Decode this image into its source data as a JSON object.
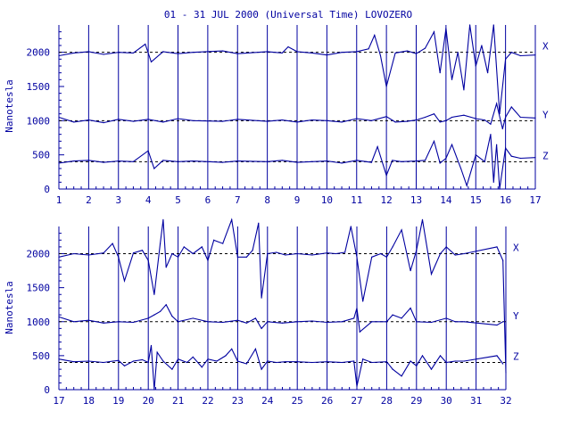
{
  "title": "01 - 31 JUL 2000 (Universal Time) LOVOZERO",
  "colors": {
    "ink": "#0000a0",
    "background": "#ffffff"
  },
  "chart_data": [
    {
      "type": "line",
      "panel": "top",
      "ylabel": "Nanotesla",
      "xlim": [
        1,
        17
      ],
      "ylim": [
        0,
        2400
      ],
      "yticks": [
        0,
        500,
        1000,
        1500,
        2000
      ],
      "xticks": [
        1,
        2,
        3,
        4,
        5,
        6,
        7,
        8,
        9,
        10,
        11,
        12,
        13,
        14,
        15,
        16,
        17
      ],
      "grid": "vertical at each day",
      "baselines": [
        {
          "component": "X",
          "level": 2000
        },
        {
          "component": "Y",
          "level": 1000
        },
        {
          "component": "Z",
          "level": 400
        }
      ],
      "series": [
        {
          "name": "X",
          "x": [
            1,
            1.5,
            2,
            2.5,
            3,
            3.5,
            3.9,
            4.1,
            4.5,
            5,
            5.5,
            6.5,
            7,
            8,
            8.5,
            8.7,
            9,
            9.5,
            10,
            10.5,
            11,
            11.4,
            11.6,
            11.8,
            12,
            12.3,
            12.7,
            13,
            13.3,
            13.6,
            13.8,
            14,
            14.2,
            14.4,
            14.6,
            14.8,
            15,
            15.2,
            15.4,
            15.6,
            15.8,
            16,
            16.2,
            16.5,
            17
          ],
          "values": [
            1950,
            1990,
            2010,
            1970,
            2000,
            1990,
            2120,
            1860,
            2010,
            1980,
            2000,
            2020,
            1980,
            2010,
            1990,
            2080,
            2010,
            1990,
            1960,
            2000,
            2010,
            2050,
            2250,
            1950,
            1500,
            1990,
            2020,
            1980,
            2060,
            2300,
            1700,
            2350,
            1600,
            2000,
            1450,
            2400,
            1800,
            2100,
            1700,
            2400,
            1100,
            1900,
            2000,
            1950,
            1960
          ]
        },
        {
          "name": "Y",
          "x": [
            1,
            1.5,
            2,
            2.5,
            3,
            3.5,
            4,
            4.5,
            5,
            5.5,
            6.5,
            7,
            8,
            8.5,
            9,
            9.5,
            10,
            10.5,
            11,
            11.5,
            12,
            12.3,
            12.7,
            13,
            13.3,
            13.6,
            13.8,
            14,
            14.2,
            14.6,
            15,
            15.3,
            15.5,
            15.7,
            15.9,
            16,
            16.2,
            16.5,
            17
          ],
          "values": [
            1050,
            980,
            1010,
            970,
            1020,
            990,
            1020,
            980,
            1030,
            1000,
            990,
            1020,
            990,
            1010,
            980,
            1010,
            1000,
            980,
            1030,
            1000,
            1060,
            980,
            990,
            1010,
            1050,
            1100,
            980,
            1000,
            1050,
            1080,
            1030,
            1010,
            950,
            1250,
            880,
            1050,
            1200,
            1050,
            1040
          ]
        },
        {
          "name": "Z",
          "x": [
            1,
            1.5,
            2,
            2.5,
            3,
            3.5,
            4,
            4.2,
            4.5,
            5,
            5.5,
            6.5,
            7,
            8,
            8.5,
            9,
            9.5,
            10,
            10.5,
            11,
            11.5,
            11.7,
            12,
            12.2,
            12.5,
            13,
            13.3,
            13.6,
            13.8,
            14,
            14.2,
            14.5,
            14.7,
            15,
            15.3,
            15.5,
            15.6,
            15.7,
            15.8,
            16,
            16.2,
            16.5,
            17
          ],
          "values": [
            380,
            410,
            420,
            390,
            410,
            400,
            560,
            300,
            420,
            400,
            410,
            390,
            410,
            400,
            420,
            390,
            400,
            410,
            380,
            420,
            390,
            620,
            200,
            420,
            400,
            410,
            420,
            700,
            380,
            450,
            650,
            300,
            50,
            500,
            400,
            800,
            100,
            650,
            0,
            600,
            480,
            450,
            460
          ]
        }
      ]
    },
    {
      "type": "line",
      "panel": "bottom",
      "ylabel": "Nanotesla",
      "xlim": [
        17,
        32
      ],
      "ylim": [
        0,
        2400
      ],
      "yticks": [
        0,
        500,
        1000,
        1500,
        2000
      ],
      "xticks": [
        17,
        18,
        19,
        20,
        21,
        22,
        23,
        24,
        25,
        26,
        27,
        28,
        29,
        30,
        31,
        32
      ],
      "grid": "vertical at each day",
      "baselines": [
        {
          "component": "X",
          "level": 2000
        },
        {
          "component": "Y",
          "level": 1000
        },
        {
          "component": "Z",
          "level": 400
        }
      ],
      "series": [
        {
          "name": "X",
          "x": [
            17,
            17.5,
            18,
            18.5,
            18.8,
            19,
            19.2,
            19.5,
            19.8,
            20,
            20.2,
            20.4,
            20.5,
            20.6,
            20.8,
            21,
            21.2,
            21.5,
            21.8,
            22,
            22.2,
            22.5,
            22.8,
            23,
            23.3,
            23.5,
            23.7,
            23.8,
            24,
            24.3,
            24.6,
            25,
            25.5,
            26,
            26.3,
            26.6,
            26.8,
            27,
            27.2,
            27.5,
            27.8,
            28,
            28.2,
            28.5,
            28.8,
            29,
            29.2,
            29.5,
            29.8,
            30,
            30.3,
            30.6,
            31.7,
            31.9,
            32
          ],
          "values": [
            1950,
            2000,
            1980,
            2010,
            2150,
            1950,
            1600,
            2010,
            2050,
            1900,
            1400,
            2150,
            2500,
            1800,
            2000,
            1950,
            2100,
            2000,
            2100,
            1900,
            2200,
            2150,
            2500,
            1950,
            1950,
            2050,
            2450,
            1350,
            2000,
            2020,
            1980,
            2000,
            1980,
            2010,
            2000,
            2020,
            2400,
            1950,
            1300,
            1950,
            2000,
            1950,
            2100,
            2350,
            1750,
            2050,
            2500,
            1700,
            2000,
            2100,
            1980,
            2000,
            2100,
            1900,
            250
          ]
        },
        {
          "name": "Y",
          "x": [
            17,
            17.5,
            18,
            18.5,
            19,
            19.5,
            20,
            20.2,
            20.4,
            20.6,
            20.8,
            21,
            21.5,
            22,
            22.5,
            23,
            23.3,
            23.6,
            23.8,
            24,
            24.5,
            25,
            25.5,
            26,
            26.5,
            26.9,
            27,
            27.1,
            27.5,
            28,
            28.2,
            28.5,
            28.8,
            29,
            29.5,
            30,
            30.3,
            30.6,
            31.7,
            31.9
          ],
          "values": [
            1070,
            1000,
            1020,
            980,
            1000,
            990,
            1050,
            1100,
            1150,
            1250,
            1080,
            1000,
            1050,
            1000,
            990,
            1020,
            980,
            1050,
            900,
            1000,
            980,
            1000,
            1010,
            990,
            1000,
            1050,
            1200,
            850,
            1000,
            1000,
            1100,
            1050,
            1200,
            1000,
            990,
            1050,
            1000,
            1000,
            950,
            1000
          ]
        },
        {
          "name": "Z",
          "x": [
            17,
            17.5,
            18,
            18.5,
            19,
            19.2,
            19.5,
            19.8,
            20,
            20.1,
            20.2,
            20.3,
            20.5,
            20.8,
            21,
            21.3,
            21.5,
            21.8,
            22,
            22.3,
            22.6,
            22.8,
            23,
            23.3,
            23.6,
            23.8,
            24,
            24.3,
            24.6,
            25,
            25.5,
            26,
            26.5,
            26.9,
            27,
            27.2,
            27.5,
            28,
            28.2,
            28.5,
            28.8,
            29,
            29.2,
            29.5,
            29.8,
            30,
            30.3,
            30.6,
            31.7,
            31.9
          ],
          "values": [
            450,
            410,
            420,
            400,
            430,
            350,
            420,
            440,
            400,
            650,
            0,
            550,
            420,
            300,
            450,
            400,
            480,
            330,
            450,
            420,
            500,
            600,
            420,
            380,
            600,
            300,
            420,
            400,
            410,
            410,
            400,
            410,
            400,
            420,
            50,
            450,
            400,
            410,
            300,
            200,
            420,
            350,
            500,
            300,
            500,
            400,
            420,
            420,
            500,
            380
          ]
        }
      ]
    }
  ]
}
